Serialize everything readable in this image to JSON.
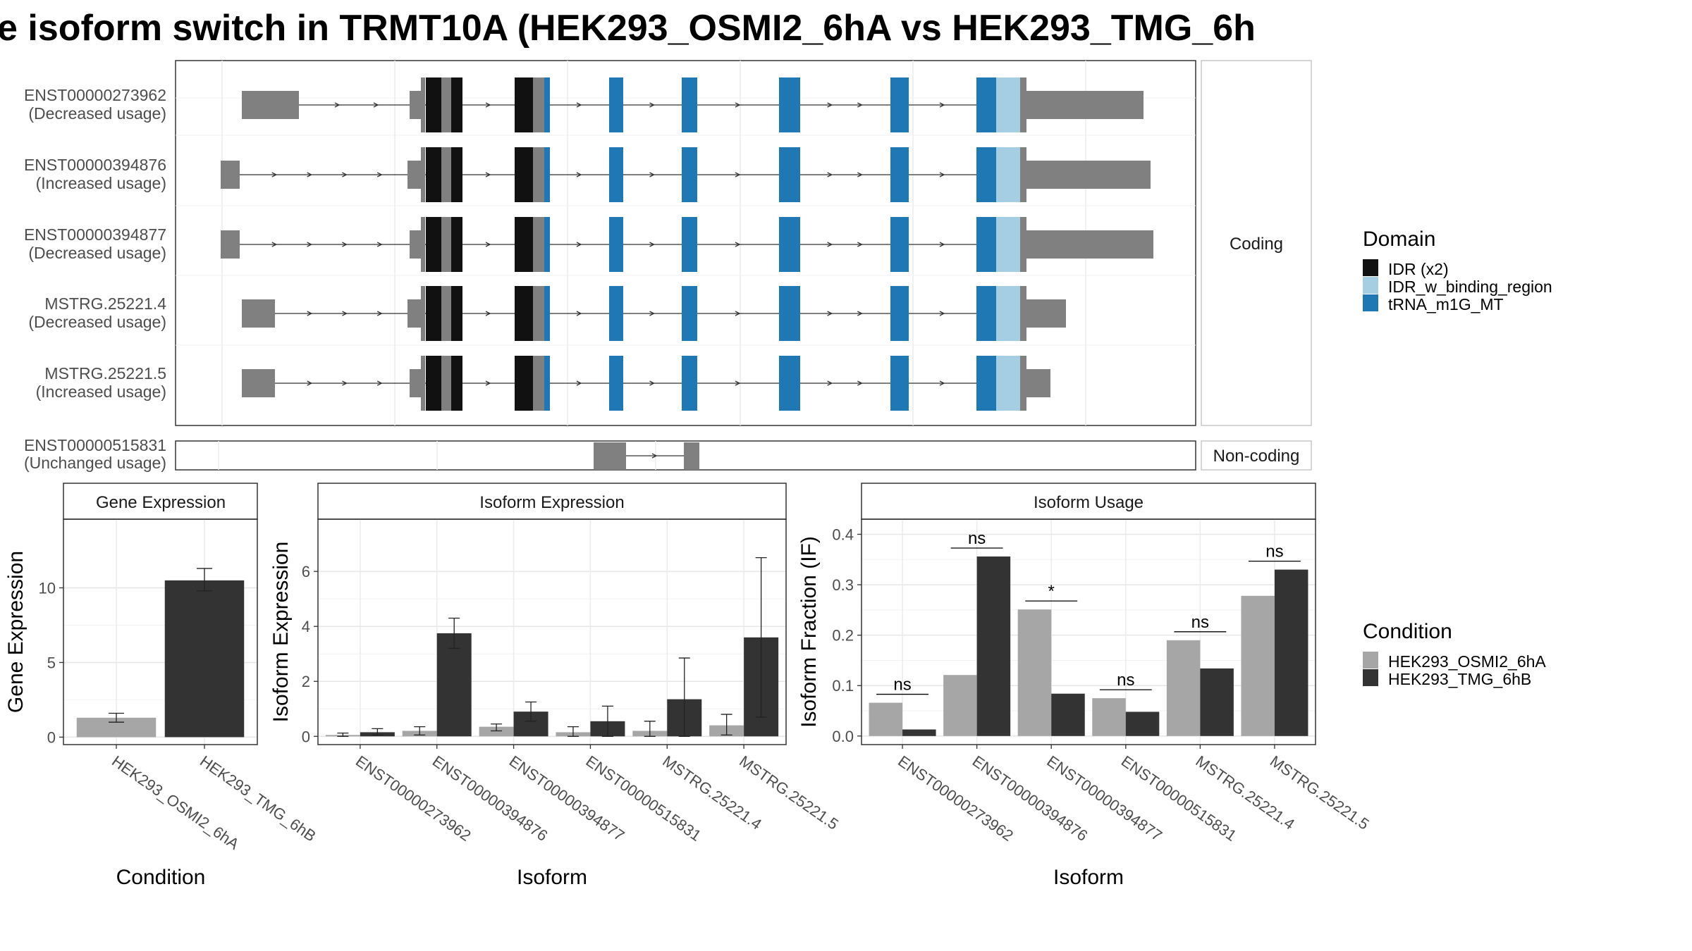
{
  "title": "e isoform switch in TRMT10A (HEK293_OSMI2_6hA vs HEK293_TMG_6h",
  "transcripts": {
    "coding": [
      {
        "id": "ENST00000273962",
        "usage": "(Decreased usage)"
      },
      {
        "id": "ENST00000394876",
        "usage": "(Increased usage)"
      },
      {
        "id": "ENST00000394877",
        "usage": "(Decreased usage)"
      },
      {
        "id": "MSTRG.25221.4",
        "usage": "(Decreased usage)"
      },
      {
        "id": "MSTRG.25221.5",
        "usage": "(Increased usage)"
      }
    ],
    "noncoding": [
      {
        "id": "ENST00000515831",
        "usage": "(Unchanged usage)"
      }
    ],
    "strip_coding": "Coding",
    "strip_noncoding": "Non-coding"
  },
  "domain_legend": {
    "title": "Domain",
    "items": [
      {
        "label": "IDR (x2)",
        "color": "#111111"
      },
      {
        "label": "IDR_w_binding_region",
        "color": "#a6cee3"
      },
      {
        "label": "tRNA_m1G_MT",
        "color": "#1f78b4"
      }
    ]
  },
  "condition_legend": {
    "title": "Condition",
    "items": [
      {
        "label": "HEK293_OSMI2_6hA",
        "color": "#a6a6a6"
      },
      {
        "label": "HEK293_TMG_6hB",
        "color": "#333333"
      }
    ]
  },
  "chart_data": [
    {
      "type": "bar",
      "title": "Gene Expression",
      "xlabel": "Condition",
      "ylabel": "Gene Expression",
      "categories": [
        "HEK293_OSMI2_6hA",
        "HEK293_TMG_6hB"
      ],
      "values": [
        1.3,
        10.5
      ],
      "error_low": [
        1.0,
        9.8
      ],
      "error_high": [
        1.6,
        11.3
      ],
      "ylim": [
        -0.5,
        14.6
      ],
      "yticks": [
        0,
        5,
        10
      ]
    },
    {
      "type": "bar",
      "title": "Isoform Expression",
      "xlabel": "Isoform",
      "ylabel": "Isoform Expression",
      "categories": [
        "ENST00000273962",
        "ENST00000394876",
        "ENST00000394877",
        "ENST00000515831",
        "MSTRG.25221.4",
        "MSTRG.25221.5"
      ],
      "series": [
        {
          "name": "HEK293_OSMI2_6hA",
          "values": [
            0.05,
            0.2,
            0.35,
            0.15,
            0.2,
            0.4
          ],
          "error_low": [
            0.0,
            0.05,
            0.2,
            0.0,
            0.0,
            0.05
          ],
          "error_high": [
            0.12,
            0.35,
            0.45,
            0.35,
            0.55,
            0.8
          ]
        },
        {
          "name": "HEK293_TMG_6hB",
          "values": [
            0.15,
            3.75,
            0.9,
            0.55,
            1.35,
            3.6
          ],
          "error_low": [
            0.05,
            3.2,
            0.55,
            0.0,
            0.0,
            0.7
          ],
          "error_high": [
            0.28,
            4.3,
            1.25,
            1.1,
            2.85,
            6.5
          ]
        }
      ],
      "ylim": [
        -0.3,
        7.9
      ],
      "yticks": [
        0,
        2,
        4,
        6
      ]
    },
    {
      "type": "bar",
      "title": "Isoform Usage",
      "xlabel": "Isoform",
      "ylabel": "Isoform Fraction (IF)",
      "categories": [
        "ENST00000273962",
        "ENST00000394876",
        "ENST00000394877",
        "ENST00000515831",
        "MSTRG.25221.4",
        "MSTRG.25221.5"
      ],
      "series": [
        {
          "name": "HEK293_OSMI2_6hA",
          "values": [
            0.066,
            0.121,
            0.251,
            0.075,
            0.19,
            0.278
          ]
        },
        {
          "name": "HEK293_TMG_6hB",
          "values": [
            0.013,
            0.356,
            0.084,
            0.048,
            0.134,
            0.33
          ]
        }
      ],
      "significance": [
        "ns",
        "ns",
        "*",
        "ns",
        "ns",
        "ns"
      ],
      "ylim": [
        -0.017,
        0.43
      ],
      "yticks": [
        0.0,
        0.1,
        0.2,
        0.3,
        0.4
      ],
      "ytick_labels": [
        "0.0",
        "0.1",
        "0.2",
        "0.3",
        "0.4"
      ]
    }
  ]
}
